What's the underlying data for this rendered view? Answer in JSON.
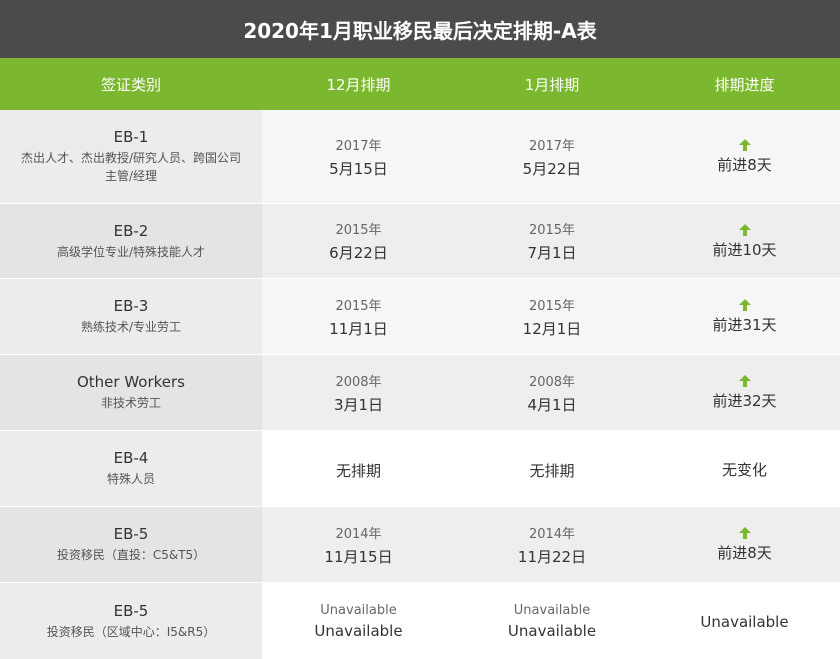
{
  "title": "2020年1月职业移民最后决定排期-A表",
  "colors": {
    "title_bg": "#4b4b4b",
    "header_bg": "#7cb82f",
    "arrow": "#7cb82f"
  },
  "headers": [
    "签证类别",
    "12月排期",
    "1月排期",
    "排期进度"
  ],
  "rows": [
    {
      "code": "EB-1",
      "desc": "杰出人才、杰出教授/研究人员、跨国公司主管/经理",
      "dec": {
        "year": "2017年",
        "date": "5月15日"
      },
      "jan": {
        "year": "2017年",
        "date": "5月22日"
      },
      "progress": {
        "icon": "up-arrow-icon",
        "text": "前进8天"
      }
    },
    {
      "code": "EB-2",
      "desc": "高级学位专业/特殊技能人才",
      "dec": {
        "year": "2015年",
        "date": "6月22日"
      },
      "jan": {
        "year": "2015年",
        "date": "7月1日"
      },
      "progress": {
        "icon": "up-arrow-icon",
        "text": "前进10天"
      }
    },
    {
      "code": "EB-3",
      "desc": "熟练技术/专业劳工",
      "dec": {
        "year": "2015年",
        "date": "11月1日"
      },
      "jan": {
        "year": "2015年",
        "date": "12月1日"
      },
      "progress": {
        "icon": "up-arrow-icon",
        "text": "前进31天"
      }
    },
    {
      "code": "Other Workers",
      "desc": "非技术劳工",
      "dec": {
        "year": "2008年",
        "date": "3月1日"
      },
      "jan": {
        "year": "2008年",
        "date": "4月1日"
      },
      "progress": {
        "icon": "up-arrow-icon",
        "text": "前进32天"
      }
    },
    {
      "code": "EB-4",
      "desc": "特殊人员",
      "dec": {
        "year": "",
        "date": "无排期"
      },
      "jan": {
        "year": "",
        "date": "无排期"
      },
      "progress": {
        "icon": "",
        "text": "无变化"
      }
    },
    {
      "code": "EB-5",
      "desc": "投资移民（直投：C5&T5）",
      "dec": {
        "year": "2014年",
        "date": "11月15日"
      },
      "jan": {
        "year": "2014年",
        "date": "11月22日"
      },
      "progress": {
        "icon": "up-arrow-icon",
        "text": "前进8天"
      }
    },
    {
      "code": "EB-5",
      "desc": "投资移民（区域中心：I5&R5）",
      "dec": {
        "year": "Unavailable",
        "date": "Unavailable"
      },
      "jan": {
        "year": "Unavailable",
        "date": "Unavailable"
      },
      "progress": {
        "icon": "",
        "text": "Unavailable"
      }
    }
  ]
}
